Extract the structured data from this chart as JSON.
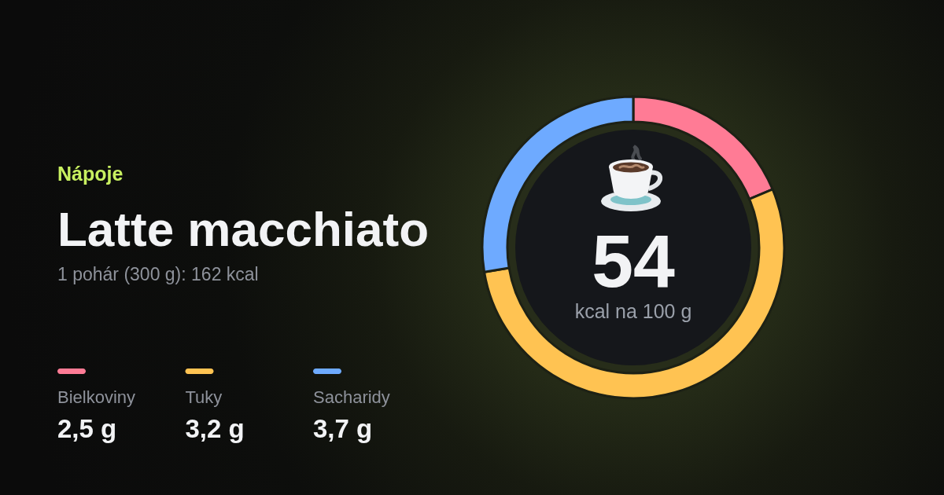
{
  "chart_data": {
    "type": "donut",
    "title": "Latte macchiato",
    "subtitle": "1 pohár (300 g): 162 kcal",
    "annotations": [
      "Nápoje",
      "54",
      "kcal na 100 g",
      "2,5 g",
      "3,2 g",
      "3,7 g"
    ],
    "categories": [
      "Bielkoviny",
      "Tuky",
      "Sacharidy"
    ],
    "values": [
      18.7,
      53.7,
      27.6
    ],
    "colors": [
      "#ff7b95",
      "#ffc352",
      "#6eaaff"
    ],
    "legend": "left"
  }
}
